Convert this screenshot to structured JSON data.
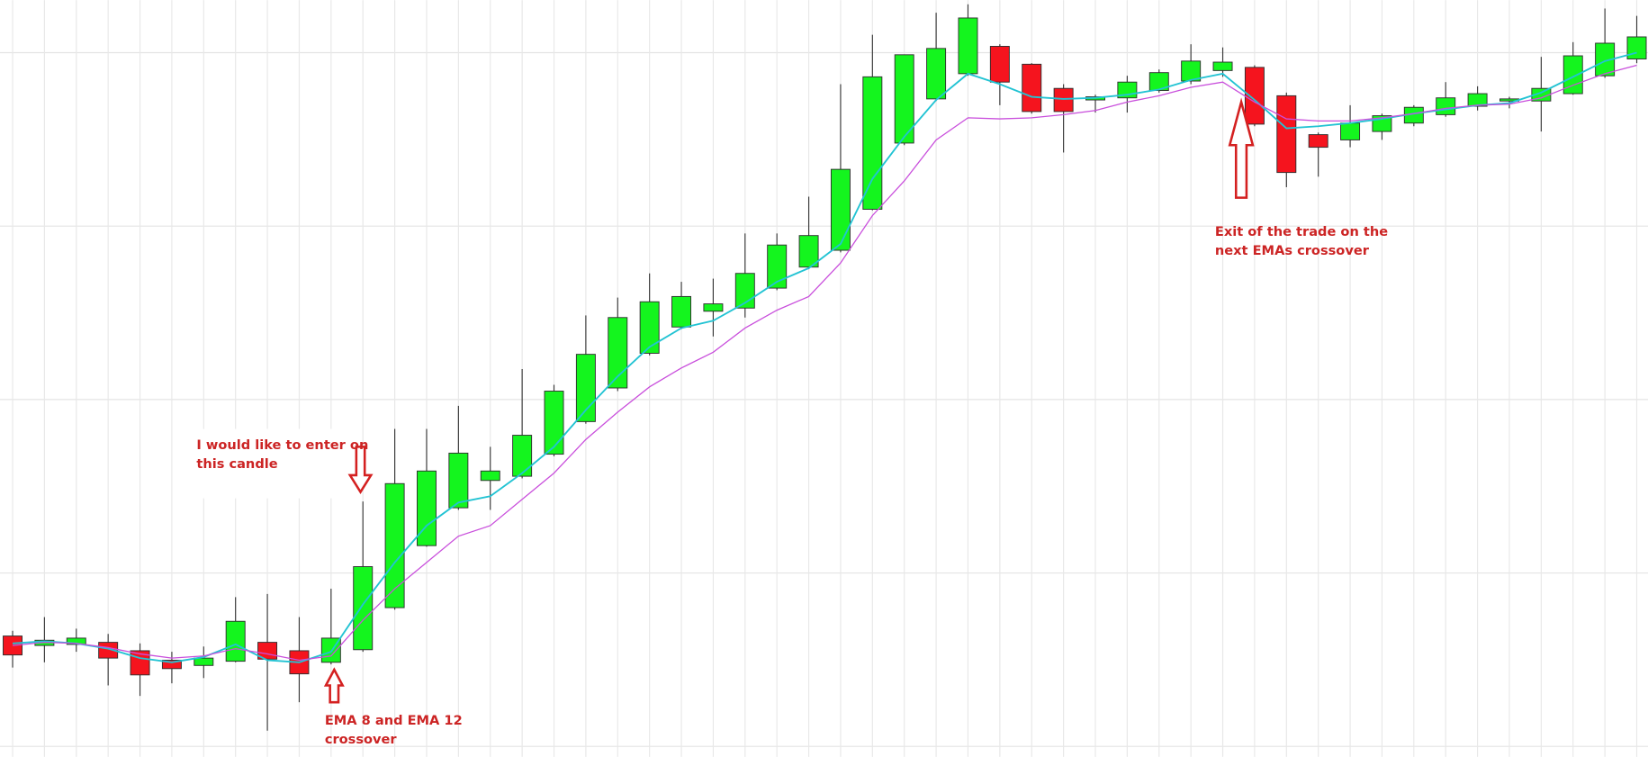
{
  "chart_data": {
    "type": "candlestick",
    "up_color": "#14f51e",
    "down_color": "#f5141e",
    "ylim": [
      0,
      720
    ],
    "yticks": [
      10,
      175,
      340,
      505,
      670
    ],
    "grid": true,
    "open": [
      115,
      106,
      107,
      109,
      101,
      92,
      87,
      91,
      109,
      101,
      90,
      102,
      142,
      201,
      237,
      263,
      267,
      288,
      319,
      351,
      384,
      409,
      424,
      427,
      446,
      466,
      482,
      521,
      584,
      626,
      650,
      676,
      659,
      636,
      625,
      627,
      634,
      643,
      653,
      656,
      629,
      592,
      587,
      595,
      603,
      611,
      619,
      624,
      624,
      631,
      648,
      664
    ],
    "high": [
      120,
      133,
      122,
      117,
      108,
      100,
      105,
      152,
      155,
      133,
      160,
      243,
      312,
      312,
      334,
      295,
      369,
      354,
      420,
      437,
      460,
      452,
      455,
      498,
      498,
      533,
      640,
      687,
      668,
      708,
      716,
      678,
      660,
      640,
      630,
      648,
      654,
      678,
      675,
      658,
      632,
      594,
      620,
      612,
      620,
      642,
      638,
      628,
      666,
      680,
      712,
      705
    ],
    "low": [
      85,
      90,
      100,
      68,
      58,
      70,
      75,
      90,
      25,
      52,
      88,
      100,
      140,
      200,
      235,
      235,
      265,
      286,
      317,
      348,
      382,
      407,
      400,
      418,
      444,
      464,
      480,
      520,
      582,
      624,
      648,
      620,
      612,
      575,
      613,
      613,
      632,
      640,
      647,
      600,
      542,
      552,
      580,
      587,
      600,
      609,
      615,
      617,
      595,
      630,
      646,
      660
    ],
    "close": [
      97,
      111,
      113,
      94,
      78,
      84,
      94,
      129,
      93,
      79,
      113,
      181,
      260,
      272,
      289,
      272,
      306,
      348,
      383,
      418,
      433,
      438,
      431,
      460,
      487,
      496,
      559,
      647,
      668,
      674,
      703,
      642,
      614,
      614,
      628,
      642,
      651,
      662,
      661,
      602,
      556,
      580,
      603,
      610,
      618,
      627,
      631,
      626,
      636,
      667,
      679,
      685
    ],
    "series": [
      {
        "color": "#22c3d3",
        "values": [
          108,
          110,
          108,
          103,
          94,
          90,
          95,
          107,
          92,
          90,
          100,
          145,
          185,
          220,
          242,
          248,
          270,
          295,
          330,
          362,
          390,
          408,
          415,
          432,
          452,
          465,
          488,
          550,
          590,
          625,
          650,
          640,
          628,
          626,
          627,
          630,
          635,
          644,
          650,
          625,
          598,
          600,
          603,
          607,
          612,
          616,
          620,
          622,
          632,
          647,
          662,
          670
        ]
      },
      {
        "color": "#c94fdc",
        "values": [
          106,
          109,
          108,
          104,
          98,
          94,
          96,
          103,
          98,
          92,
          96,
          130,
          160,
          185,
          210,
          220,
          245,
          270,
          302,
          328,
          352,
          370,
          385,
          408,
          425,
          438,
          470,
          515,
          548,
          587,
          608,
          607,
          608,
          611,
          615,
          623,
          629,
          637,
          642,
          623,
          607,
          605,
          605,
          608,
          612,
          617,
          620,
          621,
          627,
          639,
          650,
          658
        ]
      }
    ],
    "annotations": [
      {
        "lines": [
          "I would like to enter on",
          "this candle"
        ]
      },
      {
        "lines": [
          "EMA 8 and EMA 12",
          "crossover"
        ]
      },
      {
        "lines": [
          "Exit of the trade on the",
          "next EMAs crossover"
        ]
      }
    ]
  }
}
